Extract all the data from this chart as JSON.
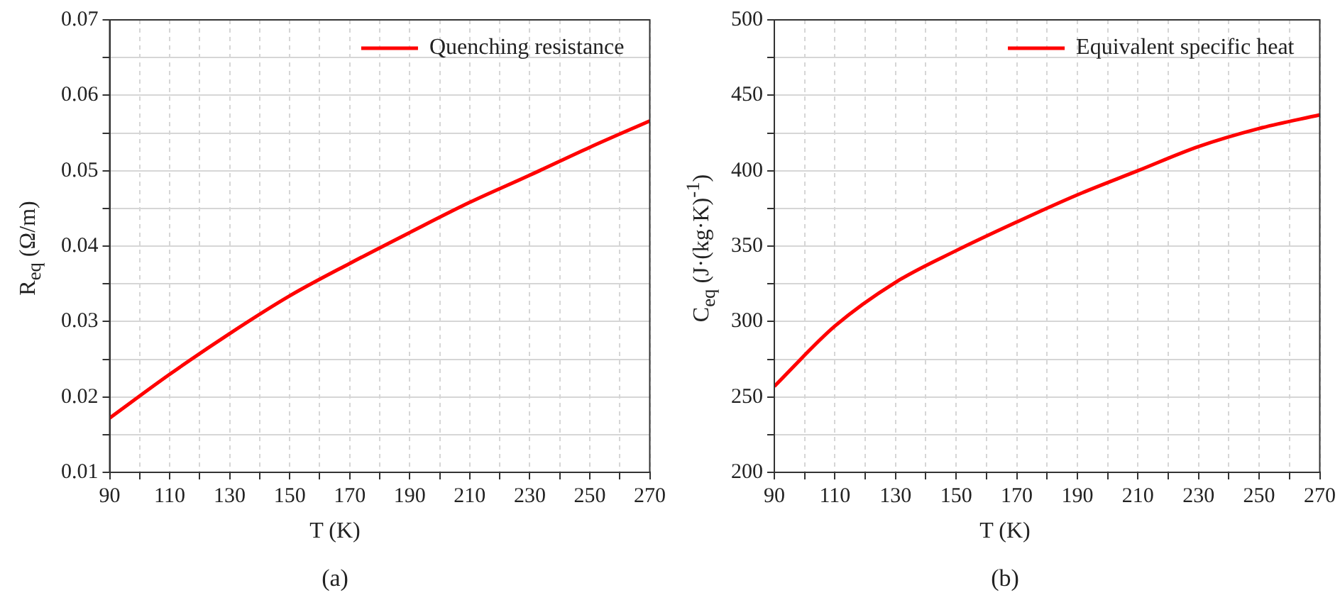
{
  "chart_data": [
    {
      "type": "line",
      "xlabel": "T (K)",
      "ylabel": "R$_{eq}$ (Ω/m)",
      "x": [
        90,
        110,
        130,
        150,
        170,
        190,
        210,
        230,
        250,
        270
      ],
      "series": [
        {
          "name": "Quenching resistance",
          "color": "#ff0000",
          "values": [
            0.0172,
            0.023,
            0.0284,
            0.0334,
            0.0377,
            0.0418,
            0.0458,
            0.0494,
            0.0531,
            0.0566
          ]
        }
      ],
      "xlim": [
        90,
        270
      ],
      "xticks": [
        90,
        {
          "value": 100,
          "label": null
        },
        110,
        {
          "value": 120,
          "label": null
        },
        130,
        {
          "value": 140,
          "label": null
        },
        150,
        {
          "value": 160,
          "label": null
        },
        170,
        {
          "value": 180,
          "label": null
        },
        190,
        {
          "value": 200,
          "label": null
        },
        210,
        {
          "value": 220,
          "label": null
        },
        230,
        {
          "value": 240,
          "label": null
        },
        250,
        {
          "value": 260,
          "label": null
        },
        270
      ],
      "ylim": [
        0.01,
        0.07
      ],
      "yticks": [
        0.01,
        {
          "value": 0.015,
          "label": null
        },
        0.02,
        {
          "value": 0.025,
          "label": null
        },
        0.03,
        {
          "value": 0.035,
          "label": null
        },
        0.04,
        {
          "value": 0.045,
          "label": null
        },
        0.05,
        {
          "value": 0.055,
          "label": null
        },
        0.06,
        {
          "value": 0.065,
          "label": null
        },
        0.07
      ],
      "grid": true,
      "legend": "top right",
      "marker": "none",
      "line_style": "solid",
      "annotations": [
        "(a)"
      ]
    },
    {
      "type": "line",
      "xlabel": "T (K)",
      "ylabel": "C$_{eq}$ (J·(kg·K)$^{-1}$)",
      "x": [
        90,
        110,
        130,
        150,
        170,
        190,
        210,
        230,
        250,
        270
      ],
      "series": [
        {
          "name": "Equivalent specific heat",
          "color": "#ff0000",
          "values": [
            257,
            297,
            326,
            347,
            366,
            384,
            400,
            416,
            428,
            437
          ]
        }
      ],
      "xlim": [
        90,
        270
      ],
      "xticks": [
        90,
        {
          "value": 100,
          "label": null
        },
        110,
        {
          "value": 120,
          "label": null
        },
        130,
        {
          "value": 140,
          "label": null
        },
        150,
        {
          "value": 160,
          "label": null
        },
        170,
        {
          "value": 180,
          "label": null
        },
        190,
        {
          "value": 200,
          "label": null
        },
        210,
        {
          "value": 220,
          "label": null
        },
        230,
        {
          "value": 240,
          "label": null
        },
        250,
        {
          "value": 260,
          "label": null
        },
        270
      ],
      "ylim": [
        200,
        500
      ],
      "yticks": [
        200,
        {
          "value": 225,
          "label": null
        },
        250,
        {
          "value": 275,
          "label": null
        },
        300,
        {
          "value": 325,
          "label": null
        },
        350,
        {
          "value": 375,
          "label": null
        },
        400,
        {
          "value": 425,
          "label": null
        },
        450,
        {
          "value": 475,
          "label": null
        },
        500
      ],
      "grid": true,
      "legend": "top right",
      "marker": "none",
      "line_style": "solid",
      "annotations": [
        "(b)"
      ]
    }
  ]
}
